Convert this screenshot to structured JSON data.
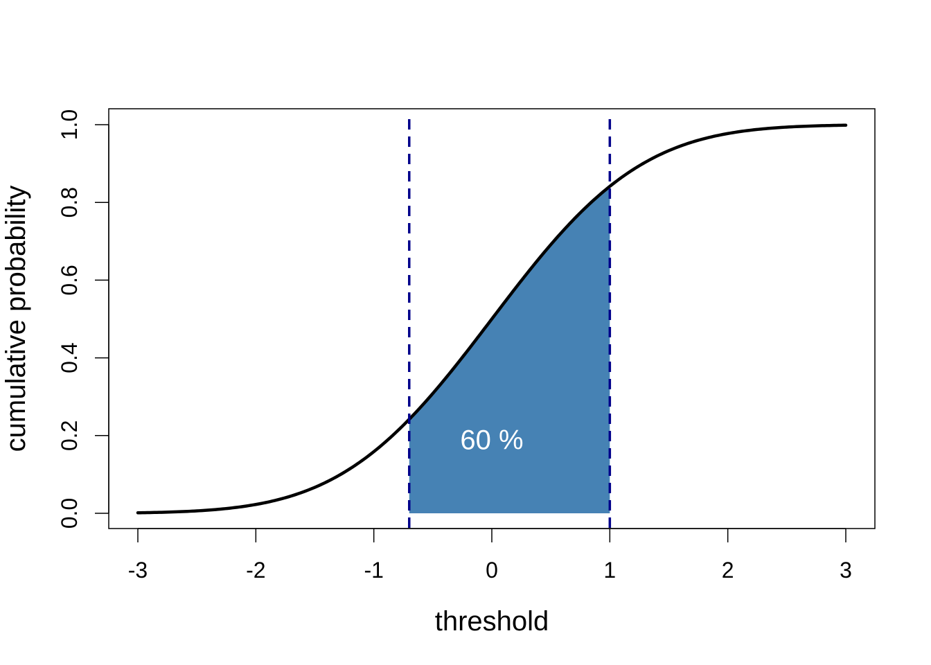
{
  "chart_data": {
    "type": "line",
    "title": "",
    "xlabel": "threshold",
    "ylabel": "cumulative probability",
    "xlim": [
      -3,
      3
    ],
    "ylim": [
      0,
      1
    ],
    "x_ticks": [
      -3,
      -2,
      -1,
      0,
      1,
      2,
      3
    ],
    "x_tick_labels": [
      "-3",
      "-2",
      "-1",
      "0",
      "1",
      "2",
      "3"
    ],
    "y_ticks": [
      0,
      0.2,
      0.4,
      0.6,
      0.8,
      1
    ],
    "y_tick_labels": [
      "0.0",
      "0.2",
      "0.4",
      "0.6",
      "0.8",
      "1.0"
    ],
    "grid": false,
    "series": [
      {
        "x": [
          -3.0,
          -2.75,
          -2.5,
          -2.25,
          -2.0,
          -1.75,
          -1.5,
          -1.25,
          -1.0,
          -0.75,
          -0.5,
          -0.25,
          0.0,
          0.25,
          0.5,
          0.75,
          1.0,
          1.25,
          1.5,
          1.75,
          2.0,
          2.25,
          2.5,
          2.75,
          3.0
        ],
        "y": [
          0.001,
          0.003,
          0.006,
          0.012,
          0.023,
          0.04,
          0.067,
          0.106,
          0.159,
          0.227,
          0.309,
          0.401,
          0.5,
          0.599,
          0.691,
          0.773,
          0.841,
          0.894,
          0.933,
          0.96,
          0.977,
          0.988,
          0.994,
          0.997,
          0.999
        ],
        "color": "#000000"
      }
    ],
    "shaded_region": {
      "x_from": -0.7,
      "x_to": 1.0,
      "color": "#4682B4",
      "label": "60 %",
      "label_x": 0.0,
      "label_y": 0.19
    },
    "vlines": [
      {
        "x": -0.7,
        "color": "#00008B",
        "style": "dashed"
      },
      {
        "x": 1.0,
        "color": "#00008B",
        "style": "dashed"
      }
    ]
  }
}
